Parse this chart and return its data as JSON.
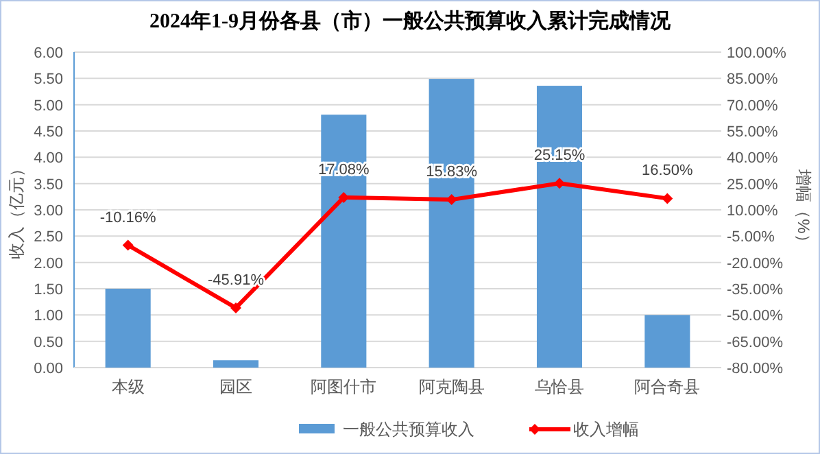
{
  "chart_data": {
    "type": "bar",
    "title": "2024年1-9月份各县（市）一般公共预算收入累计完成情况",
    "categories": [
      "本级",
      "园区",
      "阿图什市",
      "阿克陶县",
      "乌恰县",
      "阿合奇县"
    ],
    "ylabel": "收入（亿元）",
    "y2label": "增幅（%）",
    "series": [
      {
        "name": "一般公共预算收入",
        "color": "#5b9bd5",
        "values": [
          1.5,
          0.14,
          4.81,
          5.49,
          5.36,
          1.0
        ]
      },
      {
        "name": "收入增幅",
        "type": "line",
        "axis": "y2",
        "color": "#ff0000",
        "marker": "diamond",
        "values": [
          -10.16,
          -45.91,
          17.08,
          15.83,
          25.15,
          16.5
        ],
        "value_labels": [
          "-10.16%",
          "-45.91%",
          "17.08%",
          "15.83%",
          "25.15%",
          "16.50%"
        ]
      }
    ],
    "ylim": [
      0,
      6
    ],
    "yticks": [
      {
        "value": 0,
        "label": "0.00"
      },
      {
        "value": 0.5,
        "label": "0.50"
      },
      {
        "value": 1,
        "label": "1.00"
      },
      {
        "value": 1.5,
        "label": "1.50"
      },
      {
        "value": 2,
        "label": "2.00"
      },
      {
        "value": 2.5,
        "label": "2.50"
      },
      {
        "value": 3,
        "label": "3.00"
      },
      {
        "value": 3.5,
        "label": "3.50"
      },
      {
        "value": 4,
        "label": "4.00"
      },
      {
        "value": 4.5,
        "label": "4.50"
      },
      {
        "value": 5,
        "label": "5.00"
      },
      {
        "value": 5.5,
        "label": "5.50"
      },
      {
        "value": 6,
        "label": "6.00"
      }
    ],
    "y2lim": [
      -80,
      100
    ],
    "y2ticks": [
      {
        "value": -80,
        "label": "-80.00%"
      },
      {
        "value": -65,
        "label": "-65.00%"
      },
      {
        "value": -50,
        "label": "-50.00%"
      },
      {
        "value": -35,
        "label": "-35.00%"
      },
      {
        "value": -20,
        "label": "-20.00%"
      },
      {
        "value": -5,
        "label": "-5.00%"
      },
      {
        "value": 10,
        "label": "10.00%"
      },
      {
        "value": 25,
        "label": "25.00%"
      },
      {
        "value": 40,
        "label": "40.00%"
      },
      {
        "value": 55,
        "label": "55.00%"
      },
      {
        "value": 70,
        "label": "70.00%"
      },
      {
        "value": 85,
        "label": "85.00%"
      },
      {
        "value": 100,
        "label": "100.00%"
      }
    ],
    "grid": "y",
    "legend": "bottom"
  }
}
